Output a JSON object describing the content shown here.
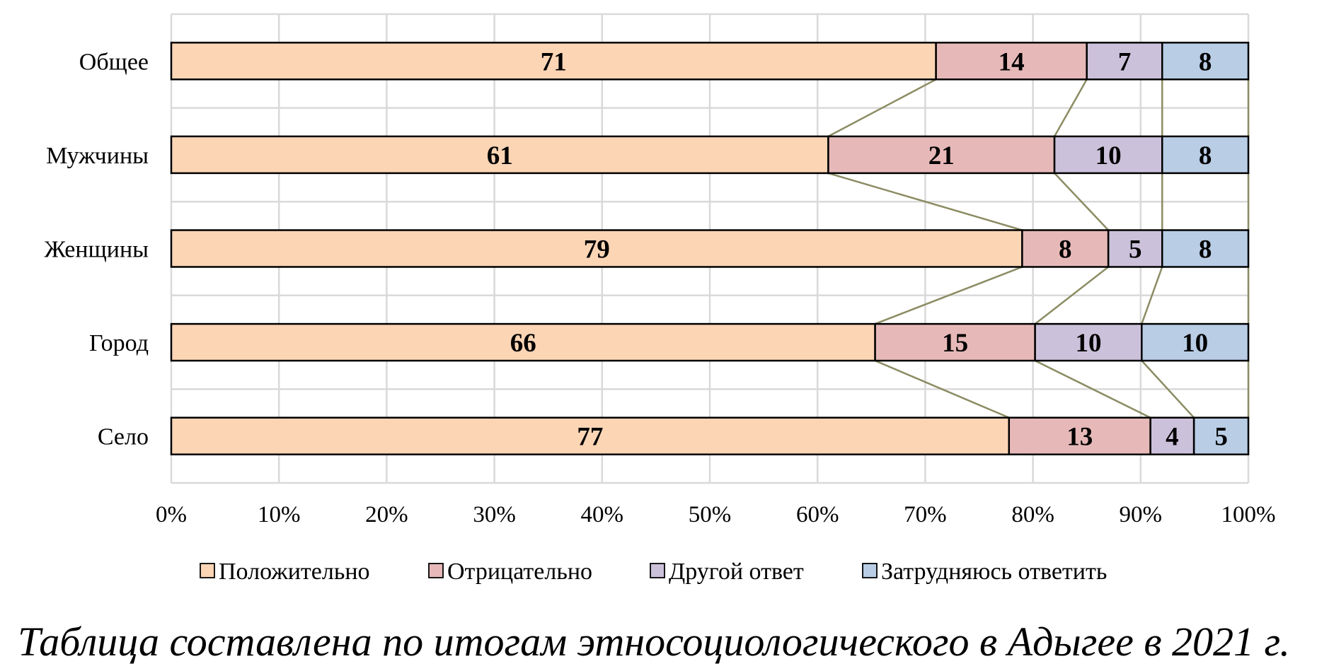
{
  "chart_data": {
    "type": "bar",
    "orientation": "horizontal",
    "stacked": "percent",
    "categories": [
      "Общее",
      "Мужчины",
      "Женщины",
      "Город",
      "Село"
    ],
    "series": [
      {
        "name": "Положительно",
        "values": [
          71,
          61,
          79,
          66,
          77
        ],
        "color": "#fcd5b5"
      },
      {
        "name": "Отрицательно",
        "values": [
          14,
          21,
          8,
          15,
          13
        ],
        "color": "#e6b9b8"
      },
      {
        "name": "Другой ответ",
        "values": [
          7,
          10,
          5,
          10,
          4
        ],
        "color": "#ccc1da"
      },
      {
        "name": "Затрудняюсь ответить",
        "values": [
          8,
          8,
          8,
          10,
          5
        ],
        "color": "#b9cde5"
      }
    ],
    "xlim": [
      0,
      100
    ],
    "x_ticks": [
      "0%",
      "10%",
      "20%",
      "30%",
      "40%",
      "50%",
      "60%",
      "70%",
      "80%",
      "90%",
      "100%"
    ],
    "grid": true,
    "series_lines": true,
    "series_line_color": "#8c8c64",
    "legend_position": "bottom"
  },
  "caption": "Таблица составлена по итогам этносоциологического в Адыгее в 2021 г."
}
